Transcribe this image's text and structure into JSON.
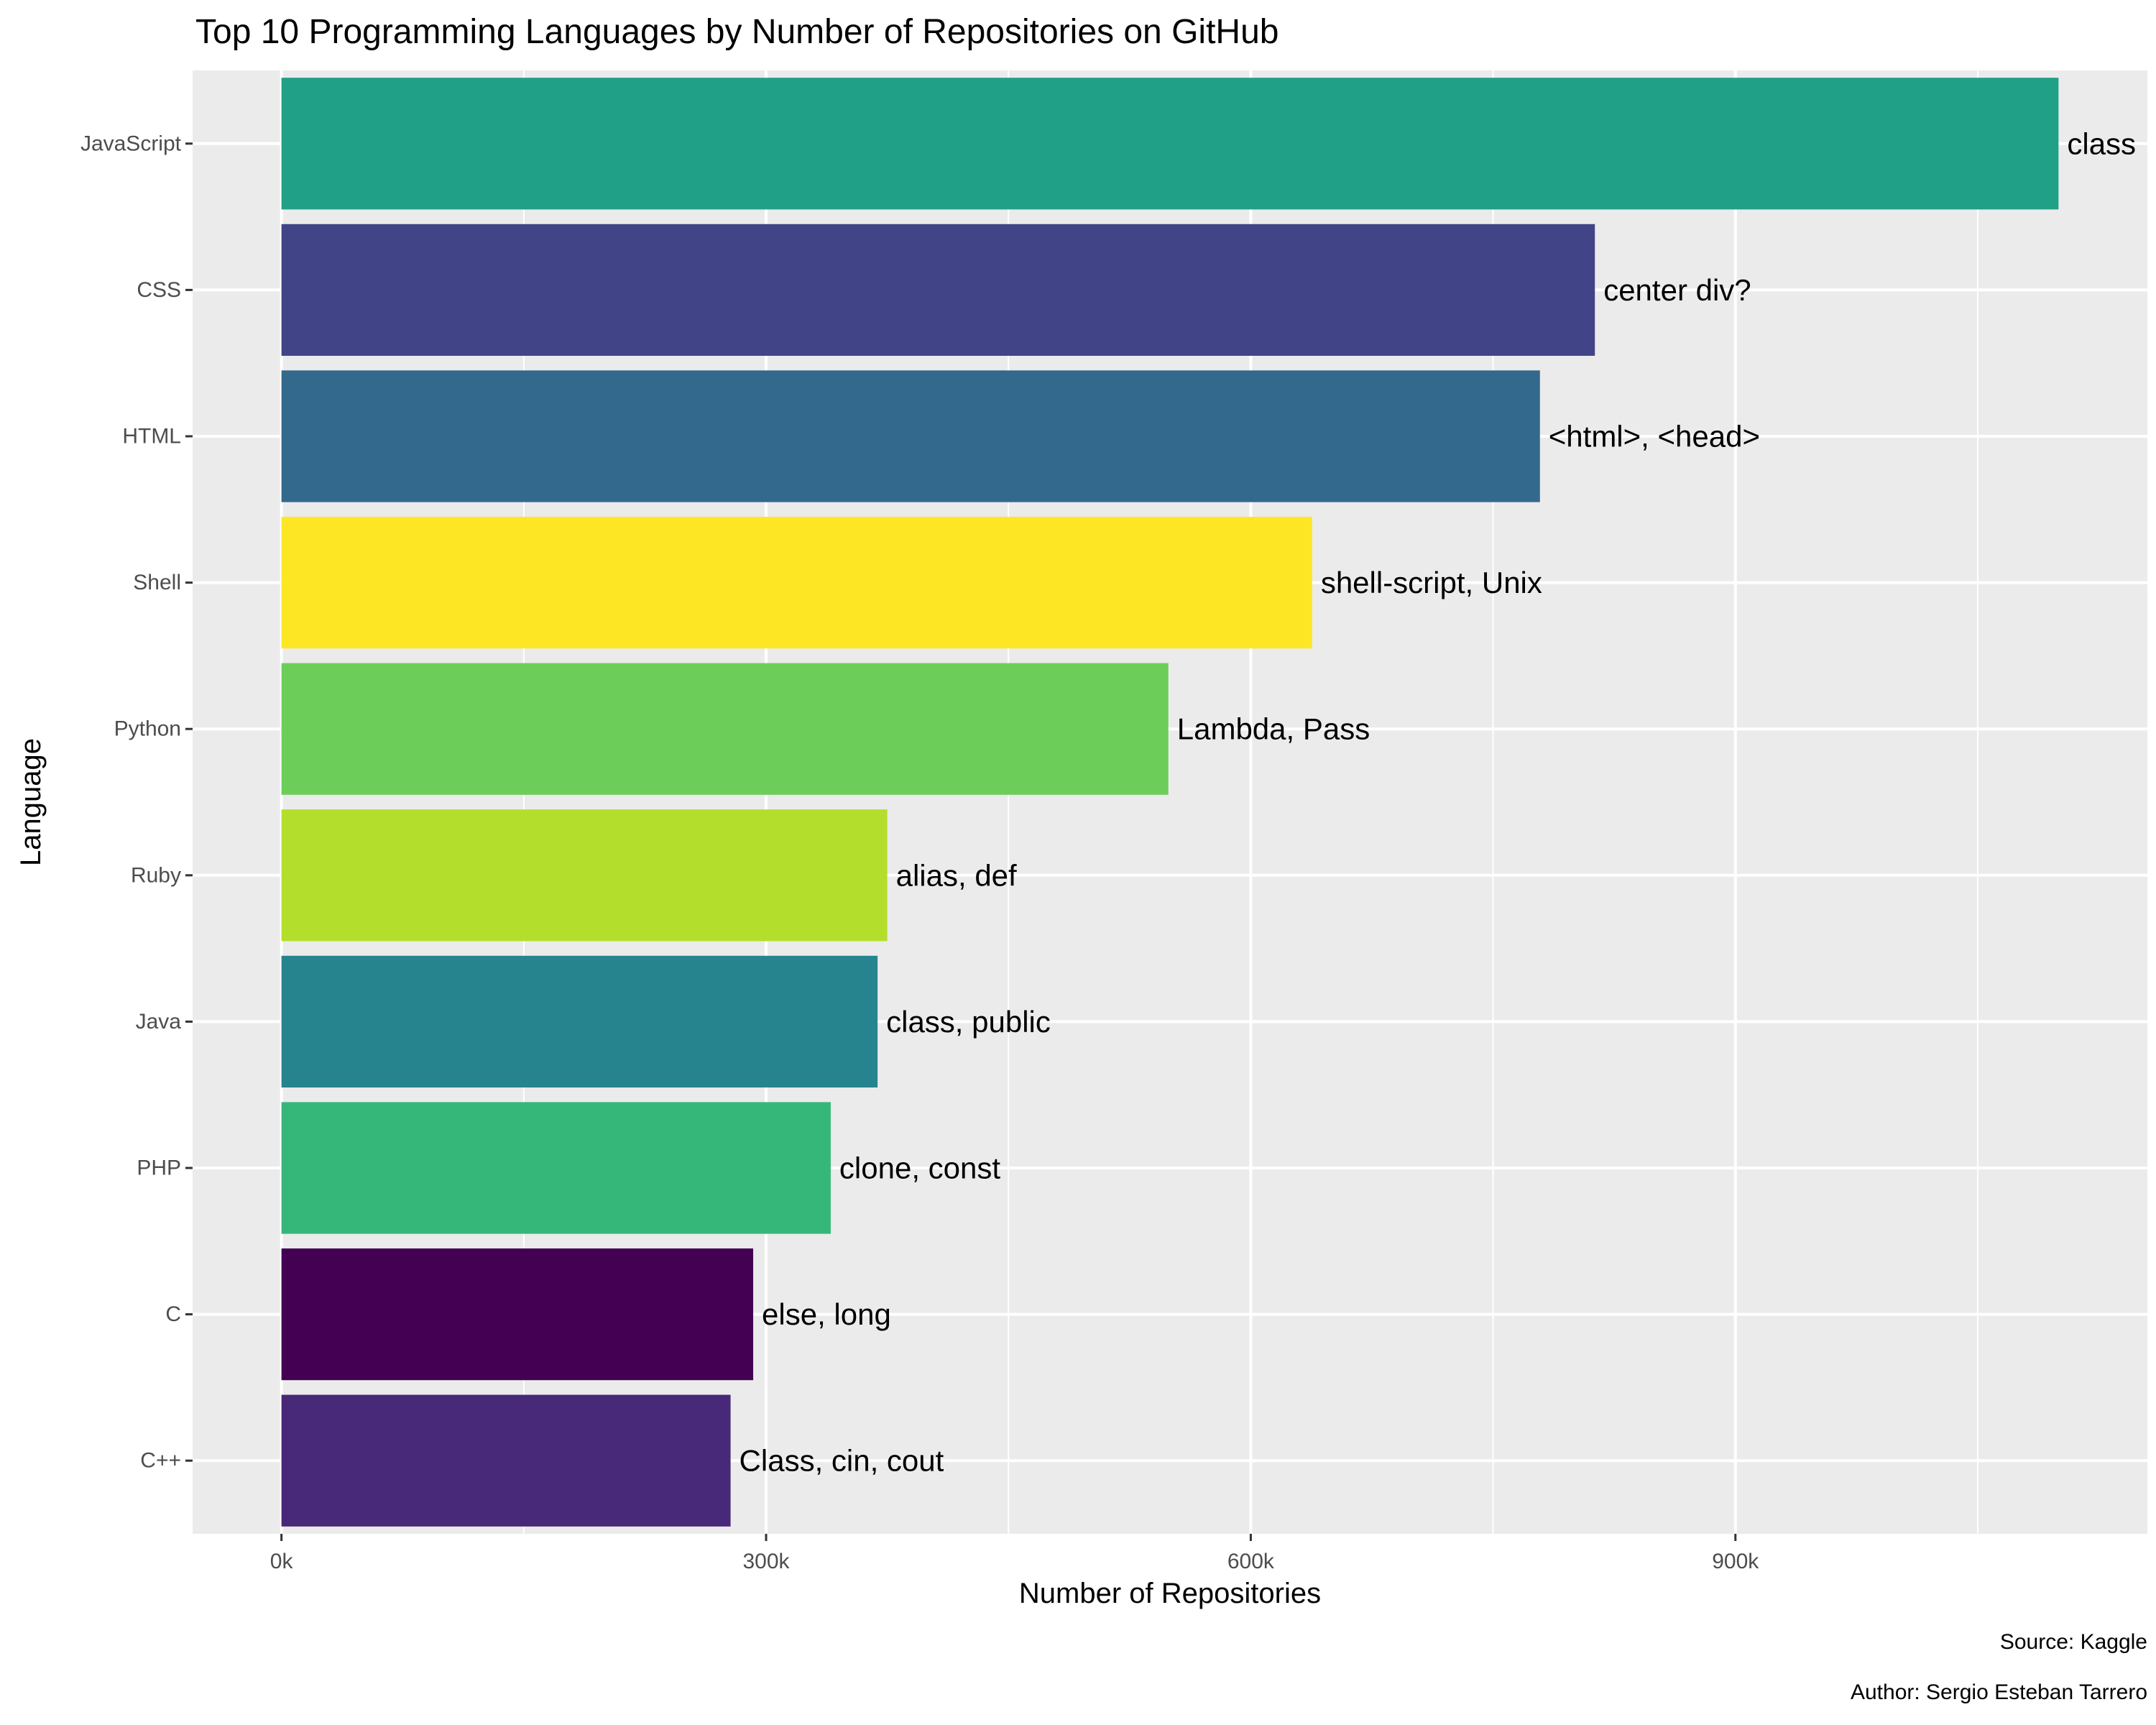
{
  "chart_data": {
    "type": "bar",
    "orientation": "horizontal",
    "title": "Top 10 Programming Languages by Number of Repositories on GitHub",
    "xlabel": "Number of Repositories",
    "ylabel": "Language",
    "xlim": [
      -55000,
      1155000
    ],
    "xticks": [
      {
        "value": 0,
        "label": "0k"
      },
      {
        "value": 300000,
        "label": "300k"
      },
      {
        "value": 600000,
        "label": "600k"
      },
      {
        "value": 900000,
        "label": "900k"
      }
    ],
    "minor_gridlines": [
      150000,
      450000,
      750000,
      1050000
    ],
    "grid": true,
    "legend": "none",
    "categories": [
      "JavaScript",
      "CSS",
      "HTML",
      "Shell",
      "Python",
      "Ruby",
      "Java",
      "PHP",
      "C",
      "C++"
    ],
    "values": [
      1100000,
      813000,
      779000,
      638000,
      549000,
      375000,
      369000,
      340000,
      292000,
      278000
    ],
    "bar_labels": [
      "class",
      "center div?",
      "<html>, <head>",
      "shell-script, Unix",
      "Lambda, Pass",
      "alias, def",
      "class, public",
      "clone, const",
      "else, long",
      "Class, cin, cout"
    ],
    "colors": [
      "#20A187",
      "#414487",
      "#32698C",
      "#FDE725",
      "#6CCE59",
      "#B4DE2C",
      "#25848E",
      "#35B779",
      "#440154",
      "#482878"
    ],
    "caption": [
      "Source: Kaggle",
      "Author: Sergio Esteban Tarrero"
    ],
    "panel_background": "#EBEBEB",
    "grid_color": "#FFFFFF"
  }
}
